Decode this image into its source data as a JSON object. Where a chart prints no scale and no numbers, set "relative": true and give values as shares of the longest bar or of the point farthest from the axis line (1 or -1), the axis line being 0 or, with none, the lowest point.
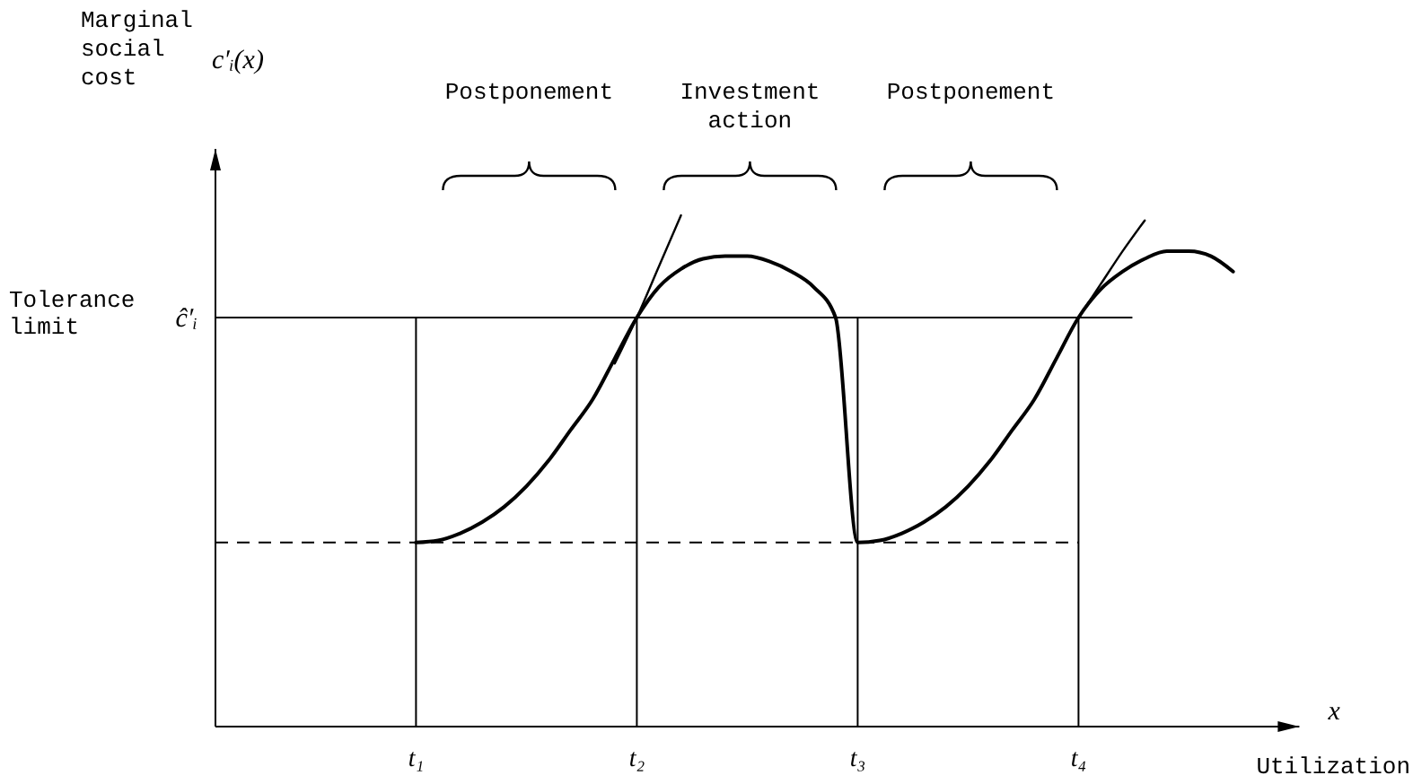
{
  "chart_data": {
    "type": "line",
    "relative": true,
    "xlabel": "Utilization",
    "categories": [
      null,
      null,
      null,
      null,
      null,
      null,
      null,
      null,
      null,
      "t₁",
      null,
      null,
      null,
      null,
      null,
      null,
      null,
      null,
      null,
      "t₂",
      null,
      null,
      null,
      null,
      null,
      null,
      null,
      null,
      null,
      "t₃",
      null,
      null,
      null,
      null,
      null,
      null,
      null,
      null,
      null,
      "t₄",
      null,
      null,
      null,
      null,
      null,
      null,
      null,
      null,
      null,
      null
    ],
    "tick_labels": "x",
    "grid": "x",
    "marker": "none",
    "line_style": "solid",
    "series": [
      {
        "color": "#000000",
        "values": [
          null,
          null,
          null,
          null,
          null,
          null,
          null,
          null,
          null,
          0.36,
          0.364,
          0.378,
          0.4,
          0.43,
          0.47,
          0.52,
          0.58,
          0.64,
          0.72,
          0.8,
          0.86,
          0.895,
          0.915,
          0.92,
          0.92,
          0.91,
          0.89,
          0.86,
          0.8,
          0.36,
          0.364,
          0.378,
          0.4,
          0.43,
          0.47,
          0.52,
          0.58,
          0.64,
          0.72,
          0.8,
          0.855,
          0.89,
          0.915,
          0.93,
          0.93,
          0.92,
          0.89,
          null,
          null,
          null
        ]
      },
      {
        "color": "#000000",
        "values": [
          null,
          null,
          null,
          null,
          null,
          null,
          null,
          null,
          null,
          null,
          null,
          null,
          null,
          null,
          null,
          null,
          null,
          null,
          0.71,
          0.8,
          0.9,
          1.0,
          null,
          null,
          null,
          null,
          null,
          null,
          null,
          null,
          null,
          null,
          null,
          null,
          null,
          null,
          null,
          null,
          null,
          null,
          null,
          null,
          null,
          null,
          null,
          null,
          null,
          null,
          null,
          null
        ]
      },
      {
        "color": "#000000",
        "values": [
          null,
          null,
          null,
          null,
          null,
          null,
          null,
          null,
          null,
          null,
          null,
          null,
          null,
          null,
          null,
          null,
          null,
          null,
          null,
          null,
          null,
          null,
          null,
          null,
          null,
          null,
          null,
          null,
          null,
          null,
          null,
          null,
          null,
          null,
          null,
          null,
          null,
          null,
          null,
          0.8,
          0.865,
          0.93,
          0.99,
          null,
          null,
          null,
          null,
          null,
          null,
          null
        ]
      }
    ],
    "ref_lines": [
      {
        "axis": "y",
        "value": 0.8,
        "label": "Tolerance limit",
        "color": "#000000",
        "line_style": "solid"
      },
      {
        "axis": "y",
        "value": 0.36,
        "color": "#000000",
        "line_style": "dashed"
      }
    ],
    "annotations": [
      "Postponement",
      "Investment action",
      "Postponement",
      "c′ᵢ(x)",
      "x",
      "ĉ′ᵢ",
      "Marginal social cost"
    ]
  }
}
